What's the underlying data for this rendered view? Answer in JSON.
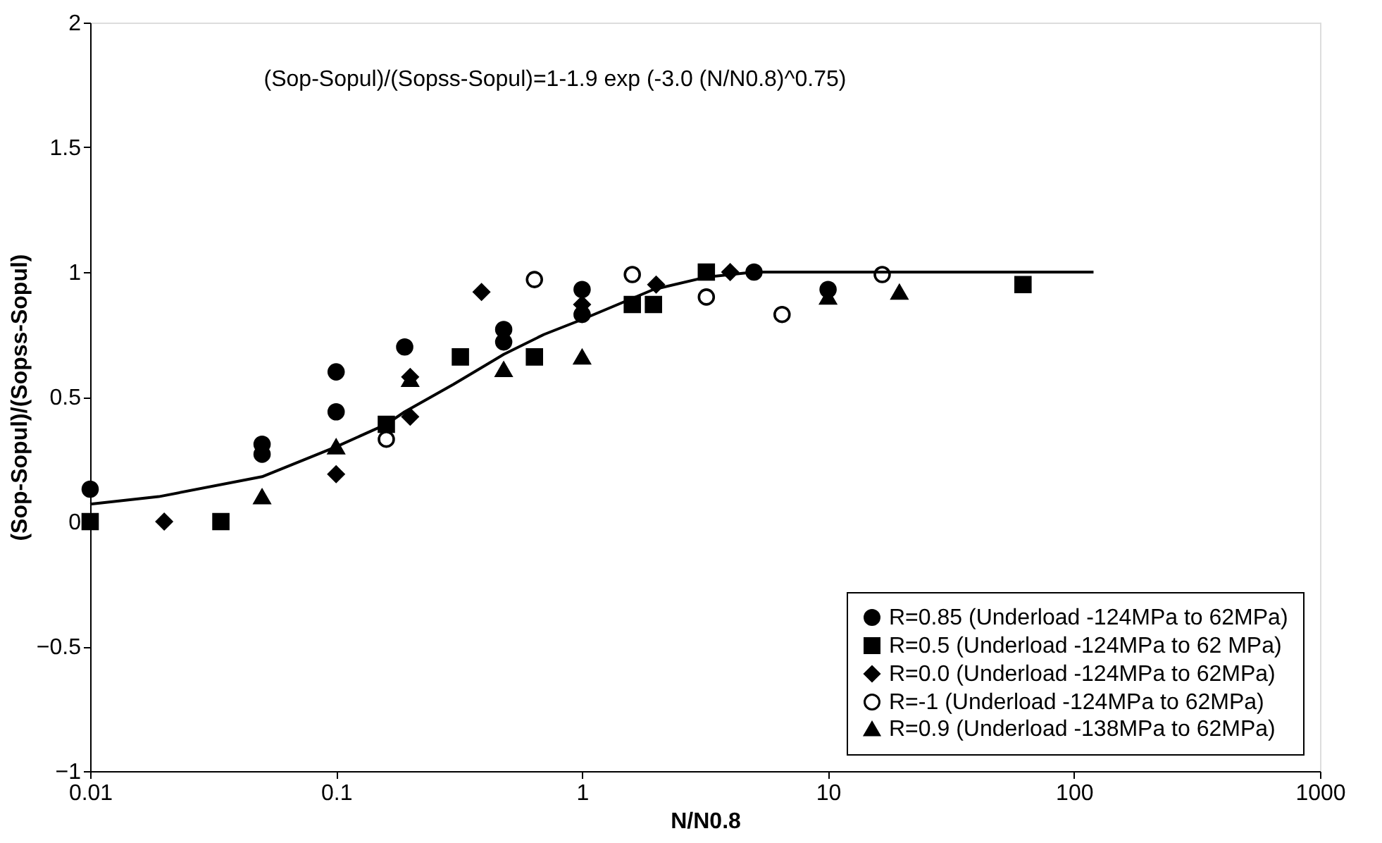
{
  "chart_data": {
    "type": "scatter",
    "annotations": [
      "(Sop-Sopul)/(Sopss-Sopul)=1-1.9 exp (-3.0 (N/N0.8)^0.75)"
    ],
    "xlabel": "N/N0.8",
    "ylabel": "(Sop-Sopul)/(Sopss-Sopul)",
    "log": "x",
    "xlim": [
      0.01,
      1000
    ],
    "xticks": [
      0.01,
      0.1,
      1,
      10,
      100,
      1000
    ],
    "ylim": [
      -1,
      2
    ],
    "yticks": [
      -1,
      -0.5,
      0,
      0.5,
      1,
      1.5,
      2
    ],
    "grid": false,
    "legend": "bottom right",
    "series": [
      {
        "name": "R=0.85 (Underload -124MPa to 62MPa)",
        "color": "#000000",
        "marker": "circle",
        "x": [
          0.01,
          0.05,
          0.05,
          0.1,
          0.1,
          0.19,
          0.48,
          0.48,
          1.0,
          1.0,
          5.0,
          10
        ],
        "values": [
          0.13,
          0.31,
          0.27,
          0.6,
          0.44,
          0.7,
          0.77,
          0.72,
          0.93,
          0.83,
          1.0,
          0.93
        ]
      },
      {
        "name": "R=0.5 (Underload -124MPa to 62 MPa)",
        "color": "#000000",
        "marker": "square",
        "x": [
          0.01,
          0.034,
          0.16,
          0.32,
          0.64,
          1.6,
          1.95,
          3.2,
          62
        ],
        "values": [
          0,
          0,
          0.39,
          0.66,
          0.66,
          0.87,
          0.87,
          1.0,
          0.95
        ]
      },
      {
        "name": "R=0.0 (Underload -124MPa to 62MPa)",
        "color": "#000000",
        "marker": "diamond",
        "x": [
          0.02,
          0.1,
          0.2,
          0.2,
          0.39,
          1.0,
          2.0,
          4.0
        ],
        "values": [
          0,
          0.19,
          0.58,
          0.42,
          0.92,
          0.87,
          0.95,
          1.0
        ]
      },
      {
        "name": "R=-1 (Underload -124MPa to 62MPa)",
        "color": "#ffffff",
        "marker": "circle",
        "x": [
          0.16,
          0.64,
          1.6,
          3.2,
          6.5,
          16.6
        ],
        "values": [
          0.33,
          0.97,
          0.99,
          0.9,
          0.83,
          0.99
        ]
      },
      {
        "name": "R=0.9 (Underload -138MPa to 62MPa)",
        "color": "#000000",
        "marker": "triangle",
        "x": [
          0.05,
          0.1,
          0.2,
          0.48,
          1.0,
          10,
          19.5
        ],
        "values": [
          0.1,
          0.3,
          0.57,
          0.61,
          0.66,
          0.9,
          0.92
        ]
      },
      {
        "type": "line",
        "color": "#000000",
        "line_style": "solid",
        "x": [
          0.01,
          0.019,
          0.05,
          0.1,
          0.16,
          0.19,
          0.3,
          0.48,
          0.7,
          1.0,
          1.95,
          3.2,
          5.0,
          120
        ],
        "values": [
          0.07,
          0.1,
          0.18,
          0.3,
          0.39,
          0.44,
          0.55,
          0.67,
          0.75,
          0.81,
          0.93,
          0.98,
          1.0,
          1.0
        ]
      }
    ]
  }
}
